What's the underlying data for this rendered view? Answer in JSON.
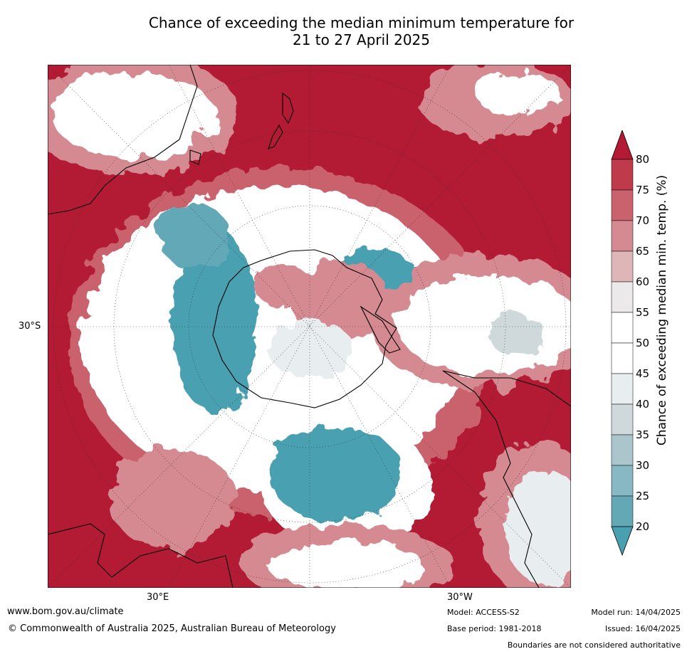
{
  "title": {
    "line1": "Chance of exceeding the median minimum temperature for",
    "line2": "21 to 27 April 2025"
  },
  "map": {
    "projection": "south-polar-stereographic",
    "lat_labels": [
      "30°S"
    ],
    "lon_labels": [
      "30°E",
      "30°W"
    ],
    "background_color": "#b31b35",
    "coast_color": "#000000"
  },
  "legend": {
    "title": "Chance of exceeding median min. temp. (%)",
    "ticks": [
      "80",
      "75",
      "70",
      "65",
      "60",
      "55",
      "50",
      "45",
      "40",
      "35",
      "30",
      "25",
      "20"
    ],
    "colors_top_to_bottom": [
      "#b31b35",
      "#bf3b4c",
      "#c9626c",
      "#d48a90",
      "#dfb6b8",
      "#ebe9ea",
      "#ffffff",
      "#ffffff",
      "#e8edf0",
      "#cfd8db",
      "#aac6cc",
      "#88b8c3",
      "#64a8b6",
      "#48a0b0"
    ]
  },
  "footer": {
    "url": "www.bom.gov.au/climate",
    "copyright": "© Commonwealth of Australia 2025, Australian Bureau of Meteorology",
    "model": "Model: ACCESS-S2",
    "base_period": "Base period: 1981-2018",
    "model_run": "Model run: 14/04/2025",
    "issued": "Issued: 16/04/2025",
    "disclaimer": "Boundaries are not considered authoritative"
  }
}
